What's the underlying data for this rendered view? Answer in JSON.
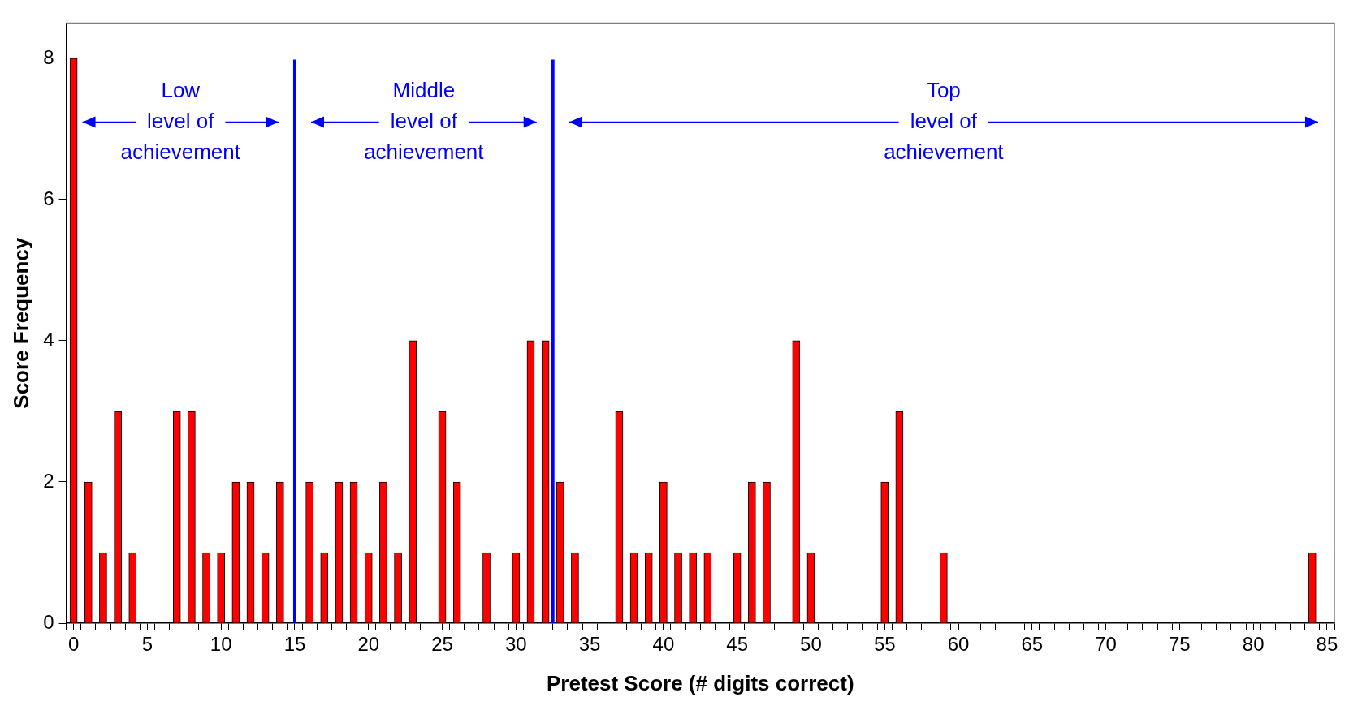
{
  "chart_data": {
    "type": "histogram",
    "xlabel": "Pretest Score (# digits correct)",
    "ylabel": "Score Frequency",
    "bins": [
      -0.5,
      0.5,
      1.5,
      2.5,
      3.5,
      4.5,
      5.5,
      6.5,
      7.5,
      8.5,
      9.5,
      10.5,
      11.5,
      12.5,
      13.5,
      14.5,
      15.5,
      16.5,
      17.5,
      18.5,
      19.5,
      20.5,
      21.5,
      22.5,
      23.5,
      24.5,
      25.5,
      26.5,
      27.5,
      28.5,
      29.5,
      30.5,
      31.5,
      32.5,
      33.5,
      34.5,
      35.5,
      36.5,
      37.5,
      38.5,
      39.5,
      40.5,
      41.5,
      42.5,
      43.5,
      44.5,
      45.5,
      46.5,
      47.5,
      48.5,
      49.5,
      50.5,
      51.5,
      52.5,
      53.5,
      54.5,
      55.5,
      56.5,
      57.5,
      58.5,
      59.5,
      60.5,
      61.5,
      62.5,
      63.5,
      64.5,
      65.5,
      66.5,
      67.5,
      68.5,
      69.5,
      70.5,
      71.5,
      72.5,
      73.5,
      74.5,
      75.5,
      76.5,
      77.5,
      78.5,
      79.5,
      80.5,
      81.5,
      82.5,
      83.5,
      84.5,
      85.5
    ],
    "values": [
      8,
      2,
      1,
      3,
      1,
      0,
      0,
      3,
      3,
      1,
      1,
      2,
      2,
      1,
      2,
      0,
      2,
      1,
      2,
      2,
      1,
      2,
      1,
      4,
      0,
      3,
      2,
      0,
      1,
      0,
      1,
      4,
      4,
      2,
      1,
      0,
      0,
      3,
      1,
      1,
      2,
      1,
      1,
      1,
      0,
      1,
      2,
      2,
      0,
      4,
      1,
      0,
      0,
      0,
      0,
      2,
      3,
      0,
      0,
      1,
      0,
      0,
      0,
      0,
      0,
      0,
      0,
      0,
      0,
      0,
      0,
      0,
      0,
      0,
      0,
      0,
      0,
      0,
      0,
      0,
      0,
      0,
      0,
      0,
      1,
      0
    ],
    "color": "#ff0000",
    "xlim": [
      -0.5,
      85.5
    ],
    "xticks": [
      0,
      5,
      10,
      15,
      20,
      25,
      30,
      35,
      40,
      45,
      50,
      55,
      60,
      65,
      70,
      75,
      80,
      85,
      {
        "value": -0.5,
        "label": null
      },
      {
        "value": 0.5,
        "label": null
      },
      {
        "value": 1.5,
        "label": null
      },
      {
        "value": 2.5,
        "label": null
      },
      {
        "value": 3.5,
        "label": null
      },
      {
        "value": 4.5,
        "label": null
      },
      {
        "value": 5.5,
        "label": null
      },
      {
        "value": 6.5,
        "label": null
      },
      {
        "value": 7.5,
        "label": null
      },
      {
        "value": 8.5,
        "label": null
      },
      {
        "value": 9.5,
        "label": null
      },
      {
        "value": 10.5,
        "label": null
      },
      {
        "value": 11.5,
        "label": null
      },
      {
        "value": 12.5,
        "label": null
      },
      {
        "value": 13.5,
        "label": null
      },
      {
        "value": 14.5,
        "label": null
      },
      {
        "value": 15.5,
        "label": null
      },
      {
        "value": 16.5,
        "label": null
      },
      {
        "value": 17.5,
        "label": null
      },
      {
        "value": 18.5,
        "label": null
      },
      {
        "value": 19.5,
        "label": null
      },
      {
        "value": 20.5,
        "label": null
      },
      {
        "value": 21.5,
        "label": null
      },
      {
        "value": 22.5,
        "label": null
      },
      {
        "value": 23.5,
        "label": null
      },
      {
        "value": 24.5,
        "label": null
      },
      {
        "value": 25.5,
        "label": null
      },
      {
        "value": 26.5,
        "label": null
      },
      {
        "value": 27.5,
        "label": null
      },
      {
        "value": 28.5,
        "label": null
      },
      {
        "value": 29.5,
        "label": null
      },
      {
        "value": 30.5,
        "label": null
      },
      {
        "value": 31.5,
        "label": null
      },
      {
        "value": 32.5,
        "label": null
      },
      {
        "value": 33.5,
        "label": null
      },
      {
        "value": 34.5,
        "label": null
      },
      {
        "value": 35.5,
        "label": null
      },
      {
        "value": 36.5,
        "label": null
      },
      {
        "value": 37.5,
        "label": null
      },
      {
        "value": 38.5,
        "label": null
      },
      {
        "value": 39.5,
        "label": null
      },
      {
        "value": 40.5,
        "label": null
      },
      {
        "value": 41.5,
        "label": null
      },
      {
        "value": 42.5,
        "label": null
      },
      {
        "value": 43.5,
        "label": null
      },
      {
        "value": 44.5,
        "label": null
      },
      {
        "value": 45.5,
        "label": null
      },
      {
        "value": 46.5,
        "label": null
      },
      {
        "value": 47.5,
        "label": null
      },
      {
        "value": 48.5,
        "label": null
      },
      {
        "value": 49.5,
        "label": null
      },
      {
        "value": 50.5,
        "label": null
      },
      {
        "value": 51.5,
        "label": null
      },
      {
        "value": 52.5,
        "label": null
      },
      {
        "value": 53.5,
        "label": null
      },
      {
        "value": 54.5,
        "label": null
      },
      {
        "value": 55.5,
        "label": null
      },
      {
        "value": 56.5,
        "label": null
      },
      {
        "value": 57.5,
        "label": null
      },
      {
        "value": 58.5,
        "label": null
      },
      {
        "value": 59.5,
        "label": null
      },
      {
        "value": 60.5,
        "label": null
      },
      {
        "value": 61.5,
        "label": null
      },
      {
        "value": 62.5,
        "label": null
      },
      {
        "value": 63.5,
        "label": null
      },
      {
        "value": 64.5,
        "label": null
      },
      {
        "value": 65.5,
        "label": null
      },
      {
        "value": 66.5,
        "label": null
      },
      {
        "value": 67.5,
        "label": null
      },
      {
        "value": 68.5,
        "label": null
      },
      {
        "value": 69.5,
        "label": null
      },
      {
        "value": 70.5,
        "label": null
      },
      {
        "value": 71.5,
        "label": null
      },
      {
        "value": 72.5,
        "label": null
      },
      {
        "value": 73.5,
        "label": null
      },
      {
        "value": 74.5,
        "label": null
      },
      {
        "value": 75.5,
        "label": null
      },
      {
        "value": 76.5,
        "label": null
      },
      {
        "value": 77.5,
        "label": null
      },
      {
        "value": 78.5,
        "label": null
      },
      {
        "value": 79.5,
        "label": null
      },
      {
        "value": 80.5,
        "label": null
      },
      {
        "value": 81.5,
        "label": null
      },
      {
        "value": 82.5,
        "label": null
      },
      {
        "value": 83.5,
        "label": null
      },
      {
        "value": 84.5,
        "label": null
      },
      {
        "value": 85.5,
        "label": null
      }
    ],
    "ylim": [
      0,
      8.5
    ],
    "yticks": [
      0,
      2,
      4,
      6,
      8
    ],
    "grid": false,
    "legend": false,
    "ref_lines": [
      {
        "axis": "x",
        "value": 15,
        "color": "#0000ff"
      },
      {
        "axis": "x",
        "value": 32.5,
        "color": "#0000ff"
      }
    ],
    "annotations": [
      "Low level of achievement",
      "Middle level of achievement",
      "Top level of achievement"
    ]
  }
}
